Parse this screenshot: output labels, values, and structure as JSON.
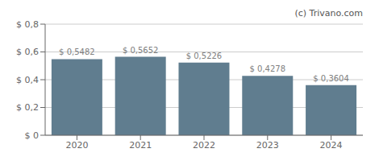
{
  "chart_data": {
    "type": "bar",
    "categories": [
      "2020",
      "2021",
      "2022",
      "2023",
      "2024"
    ],
    "values": [
      0.5482,
      0.5652,
      0.5226,
      0.4278,
      0.3604
    ],
    "value_labels": [
      "$ 0,5482",
      "$ 0,5652",
      "$ 0,5226",
      "$ 0,4278",
      "$ 0,3604"
    ],
    "data_labels": true,
    "color": "#607d8f",
    "ylim": [
      0,
      0.8
    ],
    "yticks": [
      {
        "value": 0,
        "label": "$ 0"
      },
      {
        "value": 0.2,
        "label": "$ 0,2"
      },
      {
        "value": 0.4,
        "label": "$ 0,4"
      },
      {
        "value": 0.6,
        "label": "$ 0,6"
      },
      {
        "value": 0.8,
        "label": "$ 0,8"
      }
    ],
    "grid": true,
    "annotations": [
      "(c) Trivano.com"
    ]
  }
}
